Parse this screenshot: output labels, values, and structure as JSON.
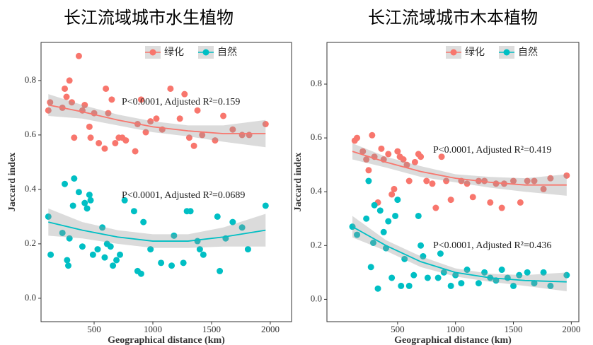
{
  "chart_data": [
    {
      "type": "scatter",
      "title": "长江流域城市水生植物",
      "xlabel": "Geographical distance (km)",
      "ylabel": "Jaccard index",
      "xlim": [
        48,
        2181
      ],
      "ylim": [
        -0.086,
        0.94
      ],
      "xticks": [
        500,
        1000,
        1500,
        2000
      ],
      "yticks": [
        {
          "value": 0,
          "label": "0.0"
        },
        0.2,
        0.4,
        0.6,
        0.8
      ],
      "legend": "top",
      "annotations": [
        "P<0.0001, Adjusted R²=0.159",
        "P<0.0001, Adjusted R²=0.0689"
      ],
      "series": [
        {
          "name": "绿化",
          "color": "#F8766D",
          "x": [
            110,
            125,
            230,
            250,
            265,
            290,
            310,
            330,
            370,
            400,
            420,
            460,
            470,
            500,
            540,
            590,
            600,
            620,
            650,
            680,
            710,
            740,
            770,
            850,
            870,
            900,
            940,
            980,
            1030,
            1080,
            1150,
            1230,
            1270,
            1310,
            1350,
            1380,
            1420,
            1530,
            1600,
            1680,
            1760,
            1820,
            1960
          ],
          "values": [
            0.69,
            0.72,
            0.7,
            0.77,
            0.74,
            0.8,
            0.72,
            0.59,
            0.89,
            0.69,
            0.71,
            0.63,
            0.59,
            0.68,
            0.57,
            0.55,
            0.77,
            0.68,
            0.73,
            0.57,
            0.59,
            0.59,
            0.58,
            0.54,
            0.64,
            0.73,
            0.61,
            0.65,
            0.66,
            0.62,
            0.77,
            0.66,
            0.75,
            0.59,
            0.56,
            0.69,
            0.6,
            0.58,
            0.67,
            0.62,
            0.6,
            0.6,
            0.64
          ],
          "fit": {
            "x": [
              110,
              400,
              700,
              1000,
              1300,
              1600,
              1960
            ],
            "values": [
              0.71,
              0.685,
              0.655,
              0.63,
              0.615,
              0.605,
              0.605
            ],
            "lower": [
              0.67,
              0.66,
              0.635,
              0.61,
              0.595,
              0.575,
              0.555
            ],
            "upper": [
              0.75,
              0.71,
              0.675,
              0.65,
              0.635,
              0.635,
              0.655
            ]
          }
        },
        {
          "name": "自然",
          "color": "#00BFC4",
          "x": [
            110,
            130,
            230,
            250,
            270,
            280,
            290,
            320,
            330,
            370,
            400,
            420,
            440,
            460,
            470,
            490,
            530,
            570,
            590,
            610,
            640,
            660,
            690,
            720,
            760,
            840,
            870,
            900,
            920,
            980,
            1070,
            1160,
            1180,
            1260,
            1290,
            1320,
            1380,
            1400,
            1430,
            1550,
            1570,
            1620,
            1680,
            1760,
            1810,
            1960
          ],
          "values": [
            0.3,
            0.16,
            0.24,
            0.42,
            0.14,
            0.12,
            0.22,
            0.34,
            0.44,
            0.39,
            0.19,
            0.35,
            0.33,
            0.38,
            0.36,
            0.16,
            0.18,
            0.26,
            0.15,
            0.2,
            0.19,
            0.12,
            0.14,
            0.16,
            0.36,
            0.32,
            0.1,
            0.09,
            0.28,
            0.18,
            0.13,
            0.12,
            0.23,
            0.13,
            0.32,
            0.32,
            0.21,
            0.18,
            0.16,
            0.3,
            0.1,
            0.22,
            0.28,
            0.26,
            0.18,
            0.34
          ],
          "fit": {
            "x": [
              110,
              400,
              700,
              1000,
              1300,
              1600,
              1960
            ],
            "values": [
              0.28,
              0.25,
              0.225,
              0.21,
              0.21,
              0.225,
              0.25
            ],
            "lower": [
              0.23,
              0.22,
              0.2,
              0.185,
              0.185,
              0.19,
              0.19
            ],
            "upper": [
              0.33,
              0.28,
              0.25,
              0.235,
              0.235,
              0.26,
              0.31
            ]
          }
        }
      ]
    },
    {
      "type": "scatter",
      "title": "长江流域城市木本植物",
      "xlabel": "Geographical distance (km)",
      "ylabel": "Jaccard index",
      "xlim": [
        -110,
        2065
      ],
      "ylim": [
        -0.083,
        0.955
      ],
      "xticks": [
        500,
        1000,
        1500,
        2000
      ],
      "yticks": [
        {
          "value": 0,
          "label": "0.0"
        },
        0.2,
        0.4,
        0.6,
        0.8
      ],
      "legend": "top",
      "annotations": [
        "P<0.0001, Adjusted R²=0.419",
        "P<0.0001, Adjusted R²=0.436"
      ],
      "series": [
        {
          "name": "绿化",
          "color": "#F8766D",
          "x": [
            130,
            150,
            200,
            230,
            250,
            280,
            300,
            330,
            360,
            380,
            420,
            450,
            470,
            500,
            520,
            550,
            580,
            600,
            650,
            680,
            700,
            750,
            800,
            830,
            880,
            920,
            960,
            1050,
            1100,
            1150,
            1200,
            1250,
            1300,
            1350,
            1400,
            1420,
            1500,
            1560,
            1620,
            1680,
            1760,
            1820,
            1960
          ],
          "values": [
            0.59,
            0.6,
            0.55,
            0.52,
            0.48,
            0.61,
            0.53,
            0.36,
            0.56,
            0.52,
            0.54,
            0.39,
            0.41,
            0.55,
            0.53,
            0.52,
            0.5,
            0.44,
            0.51,
            0.54,
            0.53,
            0.44,
            0.43,
            0.34,
            0.53,
            0.44,
            0.37,
            0.44,
            0.43,
            0.38,
            0.44,
            0.44,
            0.36,
            0.43,
            0.34,
            0.43,
            0.44,
            0.36,
            0.44,
            0.44,
            0.41,
            0.45,
            0.46
          ],
          "fit": {
            "x": [
              110,
              400,
              700,
              1000,
              1300,
              1600,
              1960
            ],
            "values": [
              0.55,
              0.51,
              0.475,
              0.45,
              0.435,
              0.425,
              0.425
            ],
            "lower": [
              0.52,
              0.49,
              0.455,
              0.435,
              0.415,
              0.4,
              0.385
            ],
            "upper": [
              0.58,
              0.53,
              0.495,
              0.465,
              0.455,
              0.45,
              0.465
            ]
          }
        },
        {
          "name": "自然",
          "color": "#00BFC4",
          "x": [
            110,
            150,
            230,
            250,
            270,
            290,
            300,
            330,
            350,
            380,
            400,
            420,
            450,
            480,
            500,
            530,
            560,
            600,
            640,
            680,
            700,
            720,
            760,
            850,
            870,
            900,
            960,
            1000,
            1050,
            1100,
            1200,
            1250,
            1300,
            1350,
            1400,
            1450,
            1500,
            1550,
            1620,
            1680,
            1760,
            1820,
            1960
          ],
          "values": [
            0.27,
            0.24,
            0.3,
            0.44,
            0.12,
            0.21,
            0.35,
            0.04,
            0.33,
            0.25,
            0.19,
            0.29,
            0.08,
            0.31,
            0.37,
            0.05,
            0.15,
            0.05,
            0.09,
            0.31,
            0.2,
            0.16,
            0.08,
            0.08,
            0.17,
            0.1,
            0.05,
            0.09,
            0.06,
            0.11,
            0.06,
            0.1,
            0.08,
            0.07,
            0.11,
            0.08,
            0.05,
            0.09,
            0.1,
            0.06,
            0.1,
            0.05,
            0.09
          ],
          "fit": {
            "x": [
              110,
              400,
              700,
              1000,
              1300,
              1600,
              1960
            ],
            "values": [
              0.27,
              0.2,
              0.14,
              0.1,
              0.08,
              0.07,
              0.065
            ],
            "lower": [
              0.23,
              0.18,
              0.12,
              0.085,
              0.065,
              0.05,
              0.03
            ],
            "upper": [
              0.31,
              0.22,
              0.16,
              0.115,
              0.095,
              0.09,
              0.1
            ]
          }
        }
      ]
    }
  ]
}
